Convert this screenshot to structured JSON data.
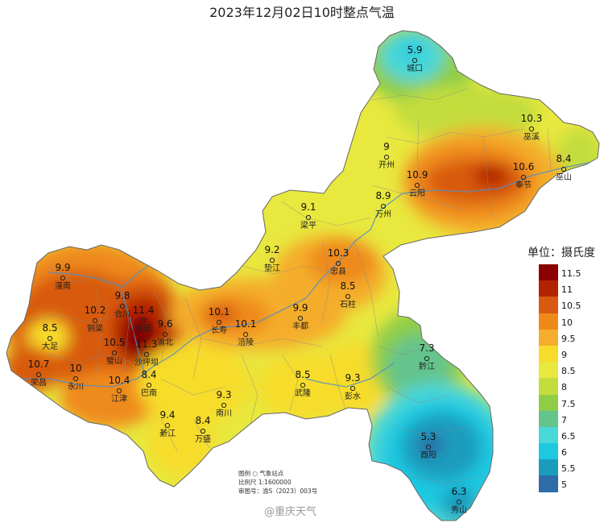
{
  "title": "2023年12月02日10时整点气温",
  "legend": {
    "title": "单位：摄氏度",
    "labels": [
      "11.5",
      "11",
      "10.5",
      "10",
      "9.5",
      "9",
      "8.5",
      "8",
      "7.5",
      "7",
      "6.5",
      "6",
      "5.5",
      "5"
    ],
    "colors": [
      "#8b0000",
      "#b22400",
      "#d85a10",
      "#ef8a1a",
      "#f4ad2c",
      "#f7dc2a",
      "#e8e83e",
      "#c3dd3c",
      "#8fcd47",
      "#63c48c",
      "#4ad7d8",
      "#1ec8e1",
      "#1c9cbd",
      "#2c6ca8"
    ]
  },
  "stations": [
    {
      "name": "城口",
      "value": "5.9"
    },
    {
      "name": "巫溪",
      "value": "10.3"
    },
    {
      "name": "开州",
      "value": "9"
    },
    {
      "name": "云阳",
      "value": "10.9"
    },
    {
      "name": "奉节",
      "value": "10.6"
    },
    {
      "name": "巫山",
      "value": "8.4"
    },
    {
      "name": "万州",
      "value": "8.9"
    },
    {
      "name": "梁平",
      "value": "9.1"
    },
    {
      "name": "垫江",
      "value": "9.2"
    },
    {
      "name": "忠县",
      "value": "10.3"
    },
    {
      "name": "石柱",
      "value": "8.5"
    },
    {
      "name": "潼南",
      "value": "9.9"
    },
    {
      "name": "合川",
      "value": "9.8"
    },
    {
      "name": "北碚",
      "value": "11.4"
    },
    {
      "name": "铜梁",
      "value": "10.2"
    },
    {
      "name": "大足",
      "value": "8.5"
    },
    {
      "name": "渝北",
      "value": "9.6"
    },
    {
      "name": "璧山",
      "value": "10.5"
    },
    {
      "name": "沙坪坝",
      "value": "11.3"
    },
    {
      "name": "长寿",
      "value": "10.1"
    },
    {
      "name": "涪陵",
      "value": "10.1"
    },
    {
      "name": "丰都",
      "value": "9.9"
    },
    {
      "name": "荣昌",
      "value": "10.7"
    },
    {
      "name": "永川",
      "value": "10"
    },
    {
      "name": "江津",
      "value": "10.4"
    },
    {
      "name": "巴南",
      "value": "8.4"
    },
    {
      "name": "南川",
      "value": "9.3"
    },
    {
      "name": "武隆",
      "value": "8.5"
    },
    {
      "name": "彭水",
      "value": "9.3"
    },
    {
      "name": "黔江",
      "value": "7.3"
    },
    {
      "name": "綦江",
      "value": "9.4"
    },
    {
      "name": "万盛",
      "value": "8.4"
    },
    {
      "name": "酉阳",
      "value": "5.3"
    },
    {
      "name": "秀山",
      "value": "6.3"
    }
  ],
  "notes": {
    "line1": "图例   ○  气象站点",
    "line2": "比例尺   1:1600000",
    "line3": "审图号：渝S（2023）003号"
  },
  "watermark": "@重庆天气"
}
